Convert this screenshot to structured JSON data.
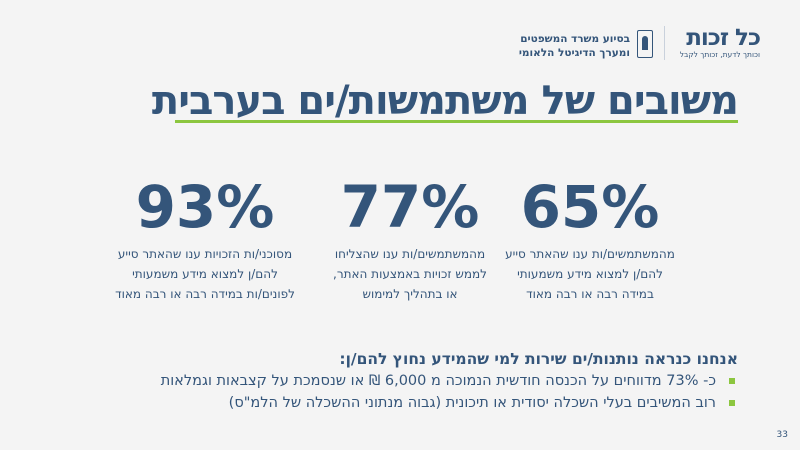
{
  "header": {
    "brand_name": "כל זכות",
    "brand_tagline": "וכותך לדעת, זכותך לקבל",
    "partner_line1": "בסיוע משרד המשפטים",
    "partner_line2": "ומערך הדיגיטל הלאומי"
  },
  "title": "משובים של משתמשות/ים בערבית",
  "stats": [
    {
      "value": "65%",
      "lines": [
        "מהמשתמשים/ות ענו שהאתר סייע",
        "להם/ן למצוא מידע משמעותי",
        "במידה רבה או רבה מאוד"
      ]
    },
    {
      "value": "77%",
      "lines": [
        "מהמשתמשים/ות ענו שהצליחו",
        "לממש זכויות באמצעות האתר,",
        "או בתהליך למימוש"
      ]
    },
    {
      "value": "93%",
      "lines": [
        "מסוכני/ות הזכויות ענו שהאתר סייע",
        "להם/ן למצוא מידע משמעותי",
        "לפונים/ות במידה רבה או רבה מאוד"
      ]
    }
  ],
  "facts": {
    "heading": "אנחנו כנראה נותנות/ים שירות למי שהמידע נחוץ להם/ן:",
    "bullets": [
      "כ- 73% מדווחים על הכנסה חודשית הנמוכה מ 6,000 ₪ או שנסמכת על קצבאות וגמלאות",
      "רוב המשיבים בעלי השכלה יסודית או תיכונית (גבוה מנתוני ההשכלה של הלמ\"ס)"
    ]
  },
  "page_number": "33",
  "colors": {
    "primary": "#34557a",
    "accent": "#8cc63f",
    "background": "#f4f4f4"
  }
}
